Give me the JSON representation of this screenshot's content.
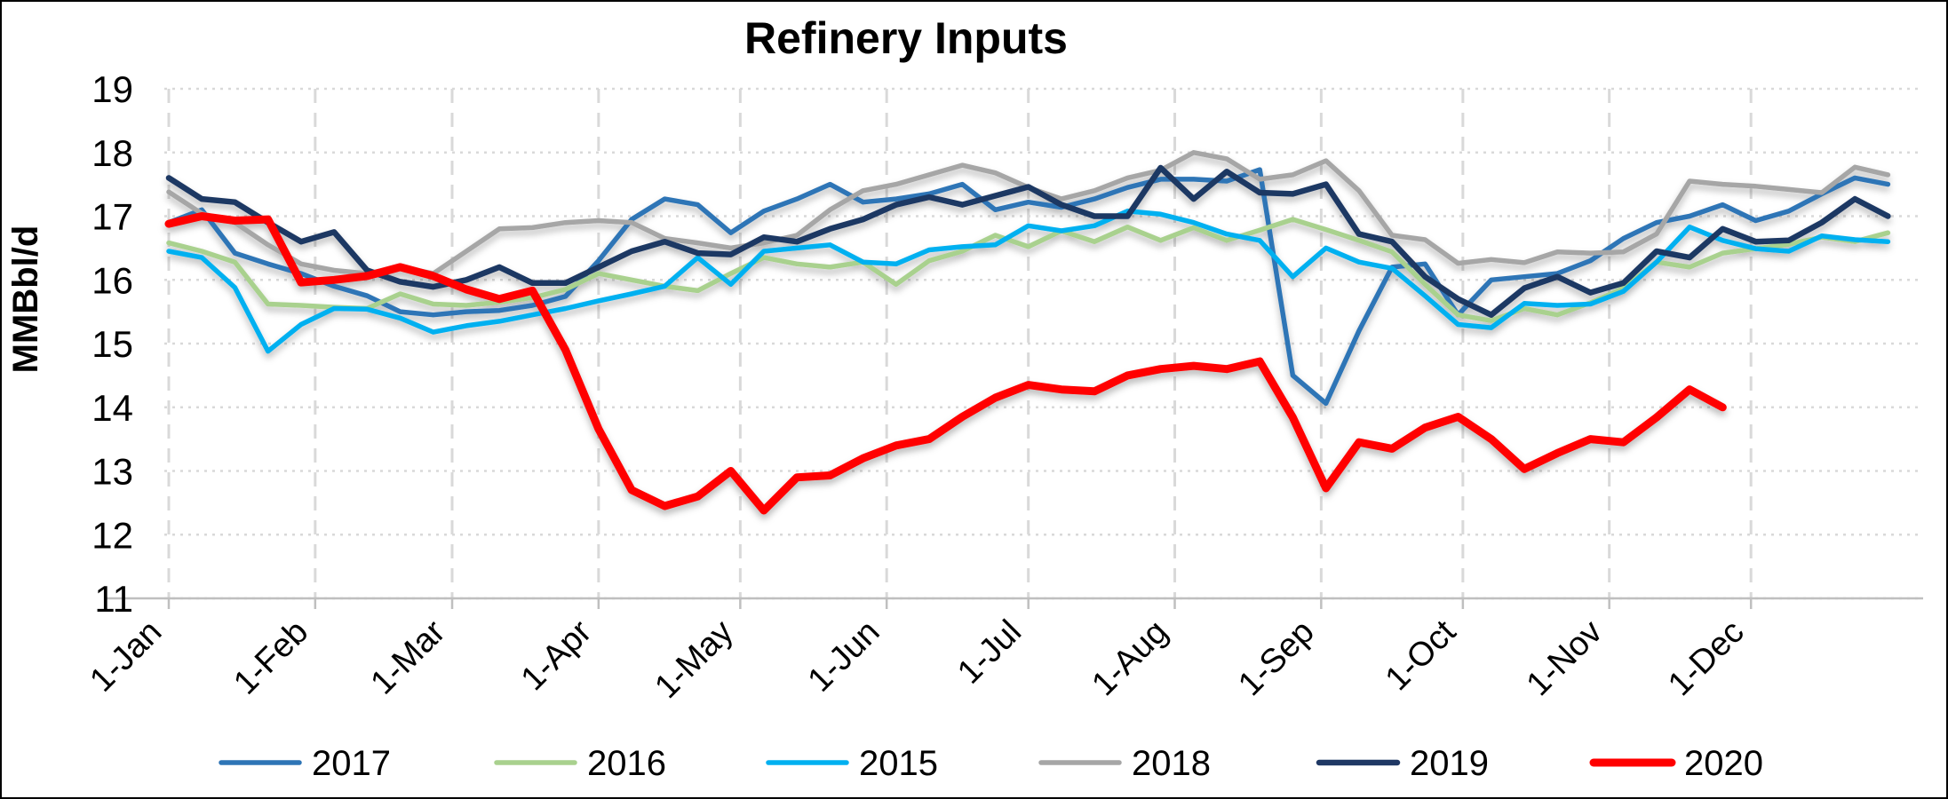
{
  "chart_data": {
    "type": "line",
    "title": "Refinery Inputs",
    "ylabel": "MMBbl/d",
    "ylim": [
      11,
      19
    ],
    "ytick_step": 1,
    "yticks": [
      11,
      12,
      13,
      14,
      15,
      16,
      17,
      18,
      19
    ],
    "x_tick_labels": [
      "1-Jan",
      "1-Feb",
      "1-Mar",
      "1-Apr",
      "1-May",
      "1-Jun",
      "1-Jul",
      "1-Aug",
      "1-Sep",
      "1-Oct",
      "1-Nov",
      "1-Dec"
    ],
    "x_unit": "weekly observations, January through December",
    "grid": "horizontal dotted and vertical dashed light gray gridlines",
    "legend_position": "bottom",
    "axis_color": "#bfbfbf",
    "grid_color": "#d9d9d9",
    "series": [
      {
        "name": "2017",
        "color": "#2E75B6",
        "width": 5.5,
        "values": [
          16.9,
          17.1,
          16.42,
          16.25,
          16.1,
          15.9,
          15.75,
          15.5,
          15.45,
          15.5,
          15.52,
          15.6,
          15.74,
          16.3,
          16.95,
          17.27,
          17.18,
          16.74,
          17.08,
          17.27,
          17.5,
          17.22,
          17.27,
          17.35,
          17.5,
          17.1,
          17.22,
          17.14,
          17.27,
          17.45,
          17.58,
          17.58,
          17.55,
          17.73,
          14.5,
          14.06,
          15.2,
          16.2,
          16.25,
          15.45,
          16.0,
          16.05,
          16.1,
          16.3,
          16.65,
          16.9,
          17.0,
          17.18,
          16.93,
          17.08,
          17.35,
          17.6,
          17.5
        ]
      },
      {
        "name": "2016",
        "color": "#A9D18E",
        "width": 5.5,
        "values": [
          16.58,
          16.45,
          16.28,
          15.62,
          15.6,
          15.57,
          15.55,
          15.78,
          15.62,
          15.6,
          15.65,
          15.72,
          15.85,
          16.1,
          16.0,
          15.9,
          15.83,
          16.1,
          16.35,
          16.25,
          16.2,
          16.28,
          15.93,
          16.3,
          16.45,
          16.7,
          16.52,
          16.77,
          16.6,
          16.83,
          16.62,
          16.82,
          16.62,
          16.78,
          16.95,
          16.79,
          16.62,
          16.44,
          15.93,
          15.45,
          15.36,
          15.55,
          15.45,
          15.64,
          15.87,
          16.28,
          16.2,
          16.42,
          16.49,
          16.56,
          16.67,
          16.6,
          16.74
        ]
      },
      {
        "name": "2015",
        "color": "#00B0F0",
        "width": 5.5,
        "values": [
          16.45,
          16.35,
          15.88,
          14.88,
          15.3,
          15.55,
          15.54,
          15.4,
          15.18,
          15.28,
          15.35,
          15.45,
          15.55,
          15.67,
          15.78,
          15.9,
          16.35,
          15.93,
          16.45,
          16.5,
          16.55,
          16.28,
          16.25,
          16.47,
          16.52,
          16.55,
          16.85,
          16.77,
          16.85,
          17.08,
          17.03,
          16.9,
          16.72,
          16.62,
          16.05,
          16.5,
          16.28,
          16.18,
          15.75,
          15.3,
          15.25,
          15.63,
          15.6,
          15.62,
          15.82,
          16.28,
          16.83,
          16.62,
          16.49,
          16.45,
          16.69,
          16.63,
          16.6
        ]
      },
      {
        "name": "2018",
        "color": "#A6A6A6",
        "width": 5.5,
        "values": [
          17.38,
          17.04,
          16.9,
          16.55,
          16.25,
          16.15,
          16.1,
          16.2,
          16.1,
          16.45,
          16.8,
          16.82,
          16.9,
          16.93,
          16.9,
          16.65,
          16.58,
          16.5,
          16.58,
          16.7,
          17.1,
          17.4,
          17.5,
          17.65,
          17.8,
          17.68,
          17.45,
          17.27,
          17.4,
          17.6,
          17.72,
          18.0,
          17.9,
          17.58,
          17.65,
          17.87,
          17.4,
          16.7,
          16.63,
          16.26,
          16.32,
          16.27,
          16.44,
          16.42,
          16.44,
          16.72,
          17.55,
          17.5,
          17.47,
          17.42,
          17.37,
          17.77,
          17.65
        ]
      },
      {
        "name": "2019",
        "color": "#1F3864",
        "width": 6.5,
        "values": [
          17.6,
          17.27,
          17.22,
          16.9,
          16.6,
          16.75,
          16.15,
          15.97,
          15.89,
          16.0,
          16.2,
          15.95,
          15.95,
          16.2,
          16.45,
          16.6,
          16.42,
          16.4,
          16.67,
          16.6,
          16.8,
          16.95,
          17.18,
          17.3,
          17.18,
          17.32,
          17.46,
          17.18,
          17.0,
          17.0,
          17.76,
          17.27,
          17.7,
          17.37,
          17.35,
          17.5,
          16.72,
          16.6,
          16.05,
          15.7,
          15.45,
          15.87,
          16.05,
          15.8,
          15.95,
          16.45,
          16.35,
          16.8,
          16.6,
          16.62,
          16.9,
          17.27,
          17.0
        ]
      },
      {
        "name": "2020",
        "color": "#FF0000",
        "width": 9,
        "values": [
          16.88,
          17.0,
          16.93,
          16.95,
          15.96,
          16.0,
          16.06,
          16.2,
          16.06,
          15.85,
          15.7,
          15.83,
          14.9,
          13.66,
          12.7,
          12.45,
          12.6,
          13.0,
          12.38,
          12.9,
          12.93,
          13.2,
          13.4,
          13.5,
          13.85,
          14.15,
          14.35,
          14.28,
          14.25,
          14.5,
          14.6,
          14.65,
          14.6,
          14.72,
          13.84,
          12.73,
          13.45,
          13.35,
          13.68,
          13.85,
          13.5,
          13.03,
          13.28,
          13.5,
          13.45,
          13.84,
          14.28,
          14.0
        ]
      }
    ]
  }
}
